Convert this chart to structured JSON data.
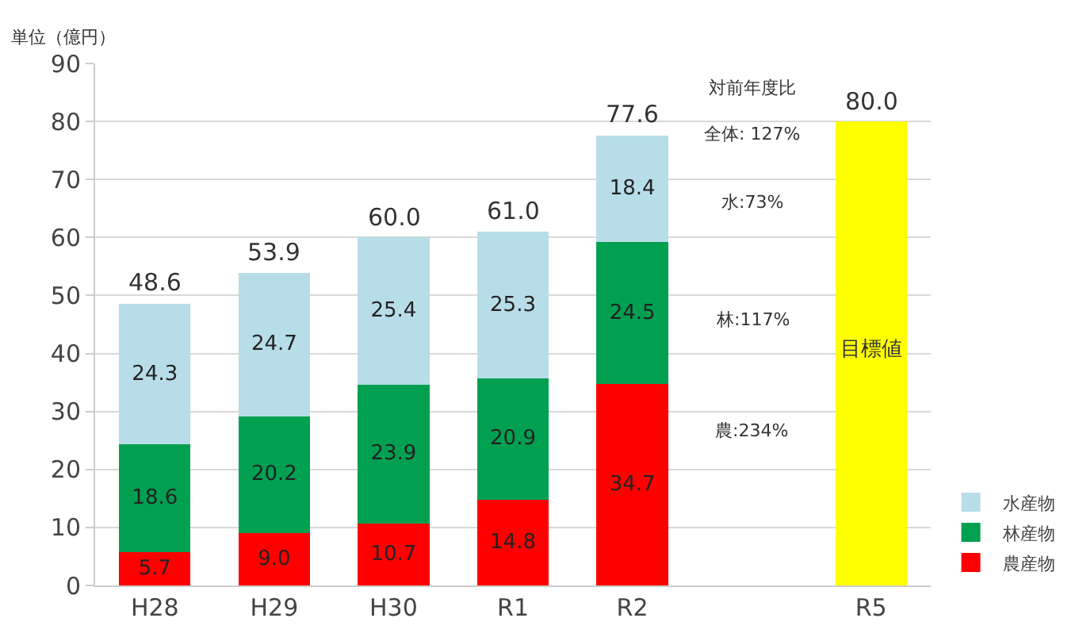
{
  "chart_data": {
    "type": "bar",
    "stacked": true,
    "ylabel": "単位（億円）",
    "categories": [
      "H28",
      "H29",
      "H30",
      "R1",
      "R2",
      null,
      "R5"
    ],
    "series": [
      {
        "name": "農産物",
        "color": "#ff0000",
        "values": [
          5.7,
          9.0,
          10.7,
          14.8,
          34.7,
          null,
          null
        ],
        "value_labels": [
          "5.7",
          "9.0",
          "10.7",
          "14.8",
          "34.7",
          null,
          null
        ]
      },
      {
        "name": "林産物",
        "color": "#00a050",
        "values": [
          18.6,
          20.2,
          23.9,
          20.9,
          24.5,
          null,
          null
        ],
        "value_labels": [
          "18.6",
          "20.2",
          "23.9",
          "20.9",
          "24.5",
          null,
          null
        ]
      },
      {
        "name": "水産物",
        "color": "#b7dde8",
        "values": [
          24.3,
          24.7,
          25.4,
          25.3,
          18.4,
          null,
          null
        ],
        "value_labels": [
          "24.3",
          "24.7",
          "25.4",
          "25.3",
          "18.4",
          null,
          null
        ]
      },
      {
        "color": "#ffff00",
        "values": [
          null,
          null,
          null,
          null,
          null,
          null,
          80.0
        ]
      }
    ],
    "totals": [
      "48.6",
      "53.9",
      "60.0",
      "61.0",
      "77.6",
      null,
      "80.0"
    ],
    "annotations": [
      "対前年度比",
      "全体: 127%",
      "水:73%",
      "林:117%",
      "農:234%",
      "目標値"
    ],
    "ylim": [
      0,
      90
    ],
    "yticks": [
      0,
      10,
      20,
      30,
      40,
      50,
      60,
      70,
      80,
      90
    ],
    "grid": "y",
    "legend": "bottom right"
  }
}
